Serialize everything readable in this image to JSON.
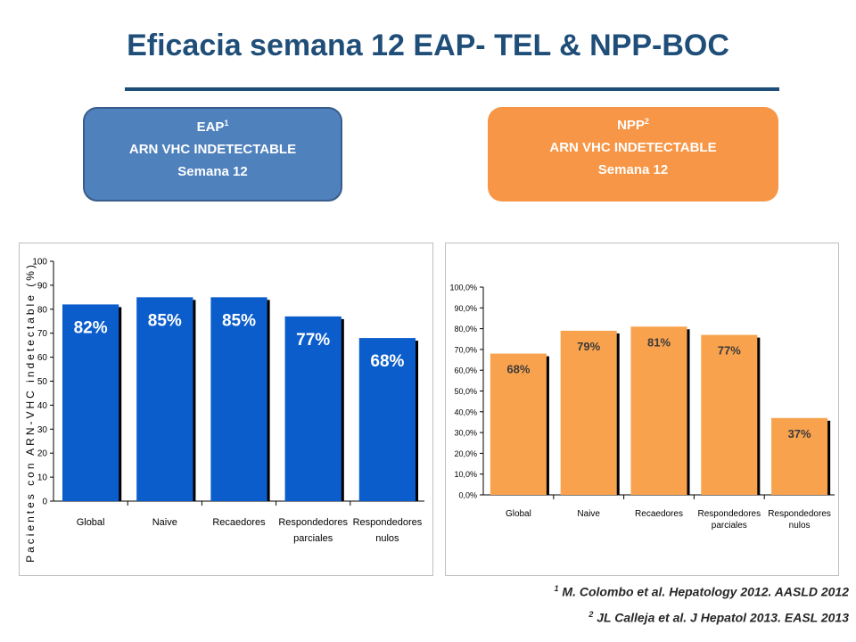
{
  "title": "Eficacia semana 12 EAP- TEL & NPP-BOC",
  "boxes": [
    {
      "head": "EAP",
      "sup": "1",
      "line2": "ARN VHC INDETECTABLE",
      "line3": "Semana 12",
      "color": "#4f81bd"
    },
    {
      "head": "NPP",
      "sup": "2",
      "line2": "ARN VHC INDETECTABLE",
      "line3": "Semana 12",
      "color": "#f79646"
    }
  ],
  "chart_data": [
    {
      "type": "bar",
      "categories": [
        [
          "Global"
        ],
        [
          "Naive"
        ],
        [
          "Recaedores"
        ],
        [
          "Respondedores",
          "parciales"
        ],
        [
          "Respondedores",
          "nulos"
        ]
      ],
      "values": [
        82,
        85,
        85,
        77,
        68
      ],
      "data_labels": [
        "82%",
        "85%",
        "85%",
        "77%",
        "68%"
      ],
      "ylabel": "Pacientes con ARN-VHC indetectable (%)",
      "ylim": [
        0,
        100
      ],
      "yticks": [
        "0",
        "10",
        "20",
        "30",
        "40",
        "50",
        "60",
        "70",
        "80",
        "90",
        "100"
      ],
      "bar_color": "#0b5dcc",
      "grid": false
    },
    {
      "type": "bar",
      "categories": [
        [
          "Global"
        ],
        [
          "Naive"
        ],
        [
          "Recaedores"
        ],
        [
          "Respondedores",
          "parciales"
        ],
        [
          "Respondedores",
          "nulos"
        ]
      ],
      "values": [
        68,
        79,
        81,
        77,
        37
      ],
      "data_labels": [
        "68%",
        "79%",
        "81%",
        "77%",
        "37%"
      ],
      "ylabel": "",
      "ylim": [
        0,
        100
      ],
      "yticks": [
        "0,0%",
        "10,0%",
        "20,0%",
        "30,0%",
        "40,0%",
        "50,0%",
        "60,0%",
        "70,0%",
        "80,0%",
        "90,0%",
        "100,0%"
      ],
      "bar_color": "#f9a24e",
      "grid": false
    }
  ],
  "refs": [
    {
      "sup": "1",
      "text": " M. Colombo et al. Hepatology 2012. AASLD 2012"
    },
    {
      "sup": "2",
      "text": " JL Calleja et al. J Hepatol 2013. EASL 2013"
    }
  ]
}
